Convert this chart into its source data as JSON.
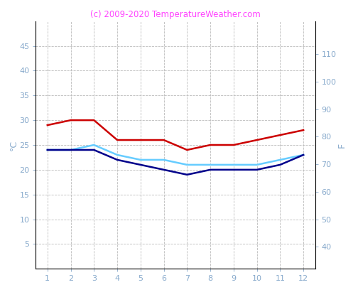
{
  "months": [
    1,
    2,
    3,
    4,
    5,
    6,
    7,
    8,
    9,
    10,
    11,
    12
  ],
  "red_line": [
    29,
    30,
    30,
    26,
    26,
    26,
    24,
    25,
    25,
    26,
    27,
    28
  ],
  "cyan_line": [
    24,
    24,
    25,
    23,
    22,
    22,
    21,
    21,
    21,
    21,
    22,
    23
  ],
  "dark_blue_line": [
    24,
    24,
    24,
    22,
    21,
    20,
    19,
    20,
    20,
    20,
    21,
    23
  ],
  "red_color": "#cc0000",
  "cyan_color": "#66ccff",
  "dark_blue_color": "#00008b",
  "title": "(c) 2009-2020 TemperatureWeather.com",
  "title_color": "#ff44ff",
  "ylabel_left": "°C",
  "ylabel_right": "F",
  "ylim_left": [
    0,
    50
  ],
  "ylim_right": [
    32,
    122
  ],
  "yticks_left": [
    5,
    10,
    15,
    20,
    25,
    30,
    35,
    40,
    45
  ],
  "yticks_right": [
    40,
    50,
    60,
    70,
    80,
    90,
    100,
    110
  ],
  "xticks": [
    1,
    2,
    3,
    4,
    5,
    6,
    7,
    8,
    9,
    10,
    11,
    12
  ],
  "tick_color": "#88aacc",
  "grid_color": "#bbbbbb",
  "background_color": "#ffffff",
  "line_width": 1.8,
  "spine_color": "#000000"
}
